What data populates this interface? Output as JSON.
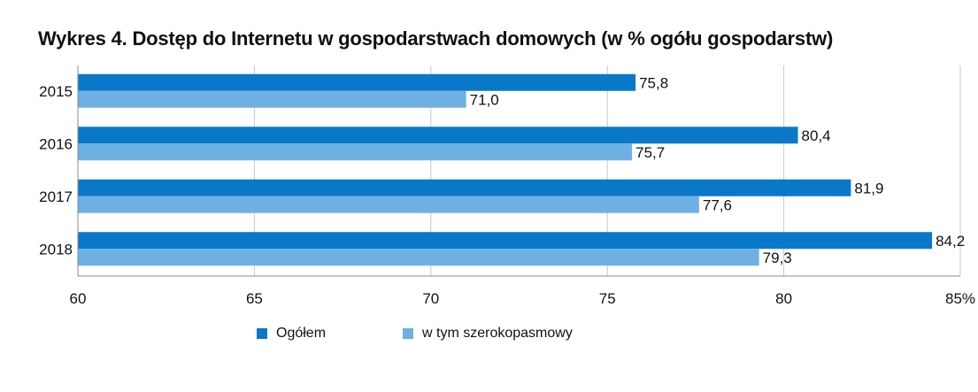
{
  "title": "Wykres 4. Dostęp do Internetu w gospodarstwach domowych (w % ogółu gospodarstw)",
  "chart_data": {
    "type": "bar",
    "orientation": "horizontal",
    "title": "Wykres 4. Dostęp do Internetu w gospodarstwach domowych (w % ogółu gospodarstw)",
    "categories": [
      "2015",
      "2016",
      "2017",
      "2018"
    ],
    "series": [
      {
        "name": "Ogółem",
        "color": "#0a78c8",
        "values": [
          75.8,
          80.4,
          81.9,
          84.2
        ],
        "labels": [
          "75,8",
          "80,4",
          "81,9",
          "84,2"
        ]
      },
      {
        "name": "w tym szerokopasmowy",
        "color": "#6fb0e2",
        "values": [
          71.0,
          75.7,
          77.6,
          79.3
        ],
        "labels": [
          "71,0",
          "75,7",
          "77,6",
          "79,3"
        ]
      }
    ],
    "xlim": [
      60,
      85
    ],
    "x_ticks": [
      60,
      65,
      70,
      75,
      80,
      85
    ],
    "x_tick_labels": [
      "60",
      "65",
      "70",
      "75",
      "80",
      "85%"
    ],
    "grid": true,
    "legend": "bottom",
    "xlabel": "",
    "ylabel": ""
  },
  "colors": {
    "grid": "#c8c8c8",
    "axis": "#888888",
    "text": "#111111"
  }
}
